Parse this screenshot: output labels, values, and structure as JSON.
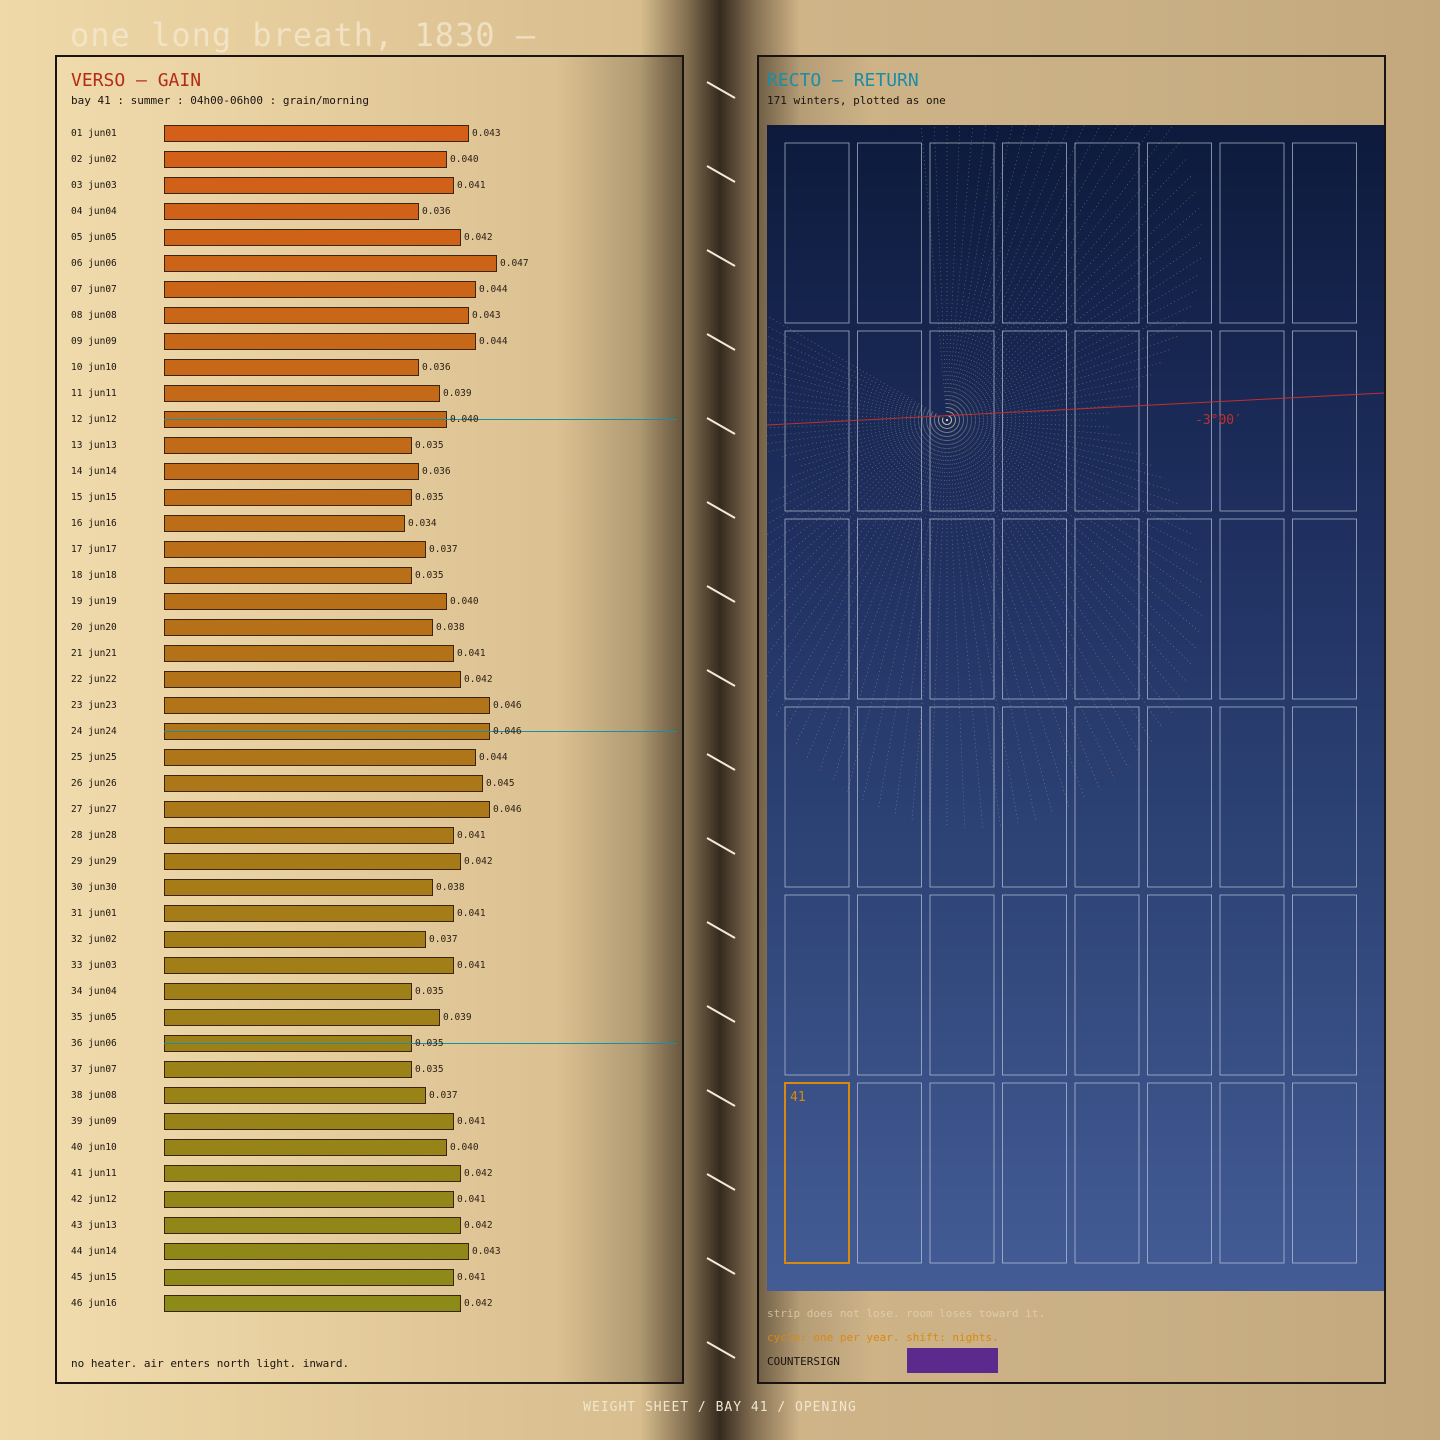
{
  "title": "one long breath, 1830 —",
  "footer": "WEIGHT SHEET / BAY 41 / OPENING",
  "verso": {
    "heading": "VERSO — GAIN",
    "subtitle": "bay 41 : summer : 04h00-06h00 : grain/morning",
    "note": "no heater. air enters north light. inward."
  },
  "recto": {
    "heading": "RECTO — RETURN",
    "subtitle": "171 winters, plotted as one",
    "angle_label": "-3°00′",
    "highlight_label": "41",
    "note1": "strip does not lose. room loses toward it.",
    "note2": "cycle: one per year. shift: nights.",
    "countersign": "COUNTERSIGN",
    "swatch_color": "#5a2b8c"
  },
  "colors": {
    "bar_start": "#d45f18",
    "bar_end": "#8c8a18",
    "accent_line": "#1a8ea6",
    "angle_line": "#c03030",
    "highlight": "#d88a10"
  },
  "chart_data": [
    {
      "type": "bar",
      "orientation": "horizontal",
      "title": "VERSO — GAIN",
      "categories": [
        "01 jun01",
        "02 jun02",
        "03 jun03",
        "04 jun04",
        "05 jun05",
        "06 jun06",
        "07 jun07",
        "08 jun08",
        "09 jun09",
        "10 jun10",
        "11 jun11",
        "12 jun12",
        "13 jun13",
        "14 jun14",
        "15 jun15",
        "16 jun16",
        "17 jun17",
        "18 jun18",
        "19 jun19",
        "20 jun20",
        "21 jun21",
        "22 jun22",
        "23 jun23",
        "24 jun24",
        "25 jun25",
        "26 jun26",
        "27 jun27",
        "28 jun28",
        "29 jun29",
        "30 jun30",
        "31 jun01",
        "32 jun02",
        "33 jun03",
        "34 jun04",
        "35 jun05",
        "36 jun06",
        "37 jun07",
        "38 jun08",
        "39 jun09",
        "40 jun10",
        "41 jun11",
        "42 jun12",
        "43 jun13",
        "44 jun14",
        "45 jun15",
        "46 jun16"
      ],
      "values": [
        0.043,
        0.04,
        0.041,
        0.036,
        0.042,
        0.047,
        0.044,
        0.043,
        0.044,
        0.036,
        0.039,
        0.04,
        0.035,
        0.036,
        0.035,
        0.034,
        0.037,
        0.035,
        0.04,
        0.038,
        0.041,
        0.042,
        0.046,
        0.046,
        0.044,
        0.045,
        0.046,
        0.041,
        0.042,
        0.038,
        0.041,
        0.037,
        0.041,
        0.035,
        0.039,
        0.035,
        0.035,
        0.037,
        0.041,
        0.04,
        0.042,
        0.041,
        0.042,
        0.043,
        0.041,
        0.042
      ],
      "value_labels": [
        "0.043",
        "0.040",
        "0.041",
        "0.036",
        "0.042",
        "0.047",
        "0.044",
        "0.043",
        "0.044",
        "0.036",
        "0.039",
        "0.040",
        "0.035",
        "0.036",
        "0.035",
        "0.034",
        "0.037",
        "0.035",
        "0.040",
        "0.038",
        "0.041",
        "0.042",
        "0.046",
        "0.046",
        "0.044",
        "0.045",
        "0.046",
        "0.041",
        "0.042",
        "0.038",
        "0.041",
        "0.037",
        "0.041",
        "0.035",
        "0.039",
        "0.035",
        "0.035",
        "0.037",
        "0.041",
        "0.040",
        "0.042",
        "0.041",
        "0.042",
        "0.043",
        "0.041",
        "0.042"
      ],
      "marked_rows": [
        12,
        24,
        36
      ],
      "xlim": [
        0,
        0.0466
      ],
      "grid": false
    },
    {
      "type": "grid",
      "title": "RECTO — RETURN",
      "columns": 8,
      "rows": 6,
      "highlighted_cell": 41,
      "angle_label": "-3°00′"
    }
  ]
}
